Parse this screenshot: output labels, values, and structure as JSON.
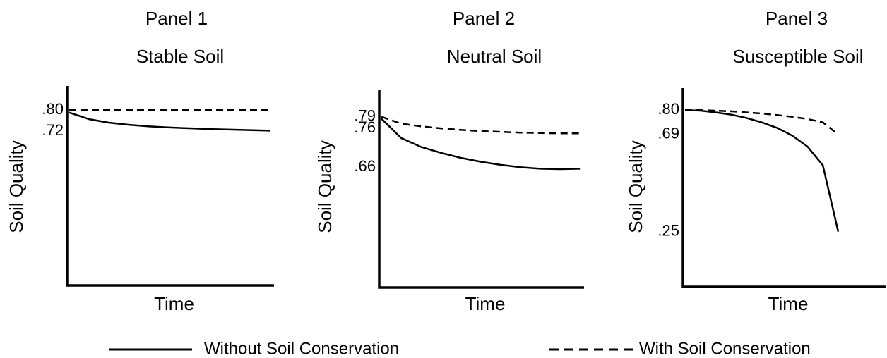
{
  "chart_data": [
    {
      "type": "line",
      "title": "Panel 1",
      "subtitle": "Stable Soil",
      "x_label": "Time",
      "y_label": "Soil Quality",
      "categories": [
        null,
        null,
        null,
        null,
        null,
        null,
        null,
        null,
        null,
        null,
        null
      ],
      "ylim": [
        0.14,
        0.89
      ],
      "yticks": [
        {
          "value": 0.8,
          "label": ".80"
        },
        {
          "value": 0.72,
          "label": ".72"
        }
      ],
      "grid": false,
      "series": [
        {
          "name": "Without Soil Conservation",
          "color": "#000000",
          "dash": false,
          "values": [
            0.79,
            0.765,
            0.752,
            0.744,
            0.738,
            0.734,
            0.731,
            0.728,
            0.726,
            0.724,
            0.722
          ]
        },
        {
          "name": "With Soil Conservation",
          "color": "#000000",
          "dash": true,
          "values": [
            0.8,
            0.8,
            0.8,
            0.8,
            0.799,
            0.799,
            0.799,
            0.799,
            0.799,
            0.799,
            0.799
          ]
        }
      ]
    },
    {
      "type": "line",
      "title": "Panel 2",
      "subtitle": "Neutral Soil",
      "x_label": "Time",
      "y_label": "Soil Quality",
      "categories": [
        null,
        null,
        null,
        null,
        null,
        null,
        null,
        null,
        null,
        null,
        null
      ],
      "ylim": [
        0.35,
        0.86
      ],
      "yticks": [
        {
          "value": 0.79,
          "label": ".79"
        },
        {
          "value": 0.76,
          "label": ".76"
        },
        {
          "value": 0.66,
          "label": ".66"
        }
      ],
      "grid": false,
      "series": [
        {
          "color": "#000000",
          "dash": false,
          "values": [
            0.785,
            0.735,
            0.712,
            0.697,
            0.684,
            0.674,
            0.666,
            0.66,
            0.656,
            0.655,
            0.656
          ]
        },
        {
          "color": "#000000",
          "dash": true,
          "values": [
            0.79,
            0.772,
            0.765,
            0.76,
            0.756,
            0.753,
            0.751,
            0.749,
            0.748,
            0.747,
            0.747
          ]
        }
      ]
    },
    {
      "type": "line",
      "title": "Panel 3",
      "subtitle": "Susceptible Soil",
      "x_label": "Time",
      "y_label": "Soil Quality",
      "categories": [
        null,
        null,
        null,
        null,
        null,
        null,
        null,
        null,
        null,
        null,
        null,
        null,
        null,
        null
      ],
      "ylim": [
        0,
        0.9
      ],
      "yticks": [
        {
          "value": 0.8,
          "label": ".80"
        },
        {
          "value": 0.69,
          "label": ".69"
        },
        {
          "value": 0.25,
          "label": ".25"
        }
      ],
      "grid": false,
      "series": [
        {
          "color": "#000000",
          "dash": false,
          "values": [
            0.8,
            0.798,
            0.79,
            0.78,
            0.765,
            0.745,
            0.72,
            0.685,
            0.635,
            0.55,
            0.25,
            null,
            null,
            null
          ]
        },
        {
          "color": "#000000",
          "dash": true,
          "values": [
            0.8,
            0.8,
            0.798,
            0.795,
            0.79,
            0.785,
            0.778,
            0.77,
            0.76,
            0.745,
            0.69,
            null,
            null,
            null
          ]
        }
      ]
    }
  ]
}
